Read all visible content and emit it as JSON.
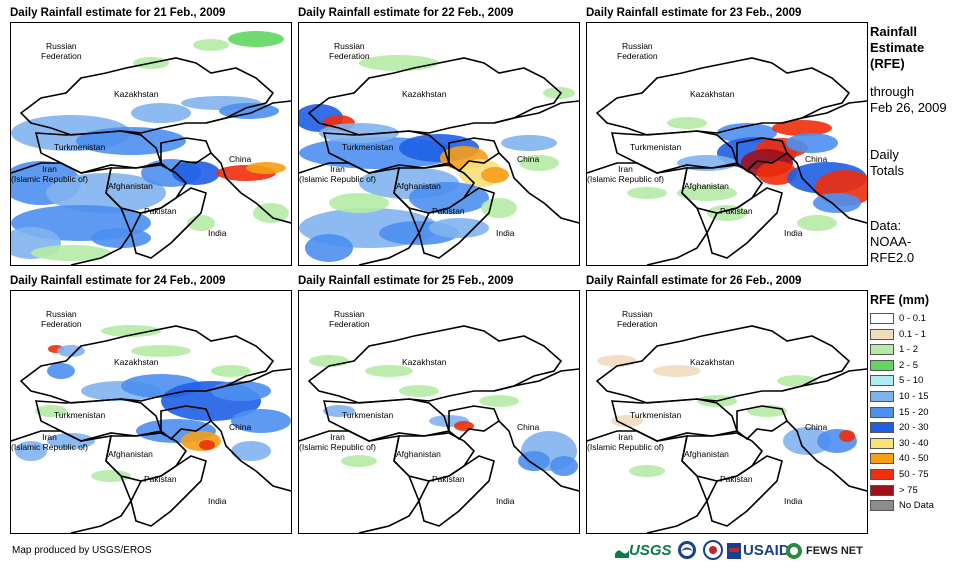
{
  "panels": [
    {
      "title": "Daily Rainfall estimate for 21 Feb., 2009"
    },
    {
      "title": "Daily Rainfall estimate for 22 Feb., 2009"
    },
    {
      "title": "Daily Rainfall estimate for 23 Feb., 2009"
    },
    {
      "title": "Daily Rainfall estimate for 24 Feb., 2009"
    },
    {
      "title": "Daily Rainfall estimate for 25 Feb., 2009"
    },
    {
      "title": "Daily Rainfall estimate for 26 Feb., 2009"
    }
  ],
  "map_labels": {
    "russia": "Russian\nFederation",
    "kazakhstan": "Kazakhstan",
    "turkmenistan": "Turkmenistan",
    "iran": "Iran\n(Islamic Republic of)",
    "afghanistan": "Afghanistan",
    "pakistan": "Pakistan",
    "india": "India",
    "china": "China"
  },
  "side": {
    "title": "Rainfall\nEstimate\n(RFE)",
    "through": "through\nFeb 26, 2009",
    "totals": "Daily\nTotals",
    "source": "Data:\nNOAA-\nRFE2.0"
  },
  "legend": {
    "title": "RFE (mm)",
    "items": [
      {
        "label": "0 - 0.1",
        "color": "#ffffff"
      },
      {
        "label": "0.1 - 1",
        "color": "#f2dcbf"
      },
      {
        "label": "1 - 2",
        "color": "#b5eba5"
      },
      {
        "label": "2 - 5",
        "color": "#5fd65f"
      },
      {
        "label": "5 - 10",
        "color": "#aeeef2"
      },
      {
        "label": "10 - 15",
        "color": "#7fb2f0"
      },
      {
        "label": "15 - 20",
        "color": "#4c8ff0"
      },
      {
        "label": "20 - 30",
        "color": "#1f5fe6"
      },
      {
        "label": "30 - 40",
        "color": "#f7e17a"
      },
      {
        "label": "40 - 50",
        "color": "#f59f17"
      },
      {
        "label": "50 - 75",
        "color": "#f02d0c"
      },
      {
        "label": "> 75",
        "color": "#a0101a"
      },
      {
        "label": "No Data",
        "color": "#8c8c8c"
      }
    ]
  },
  "credit": "Map produced by USGS/EROS",
  "logos": {
    "usgs": "USGS",
    "usaid": "USAID",
    "fewsnet": "FEWS NET"
  }
}
